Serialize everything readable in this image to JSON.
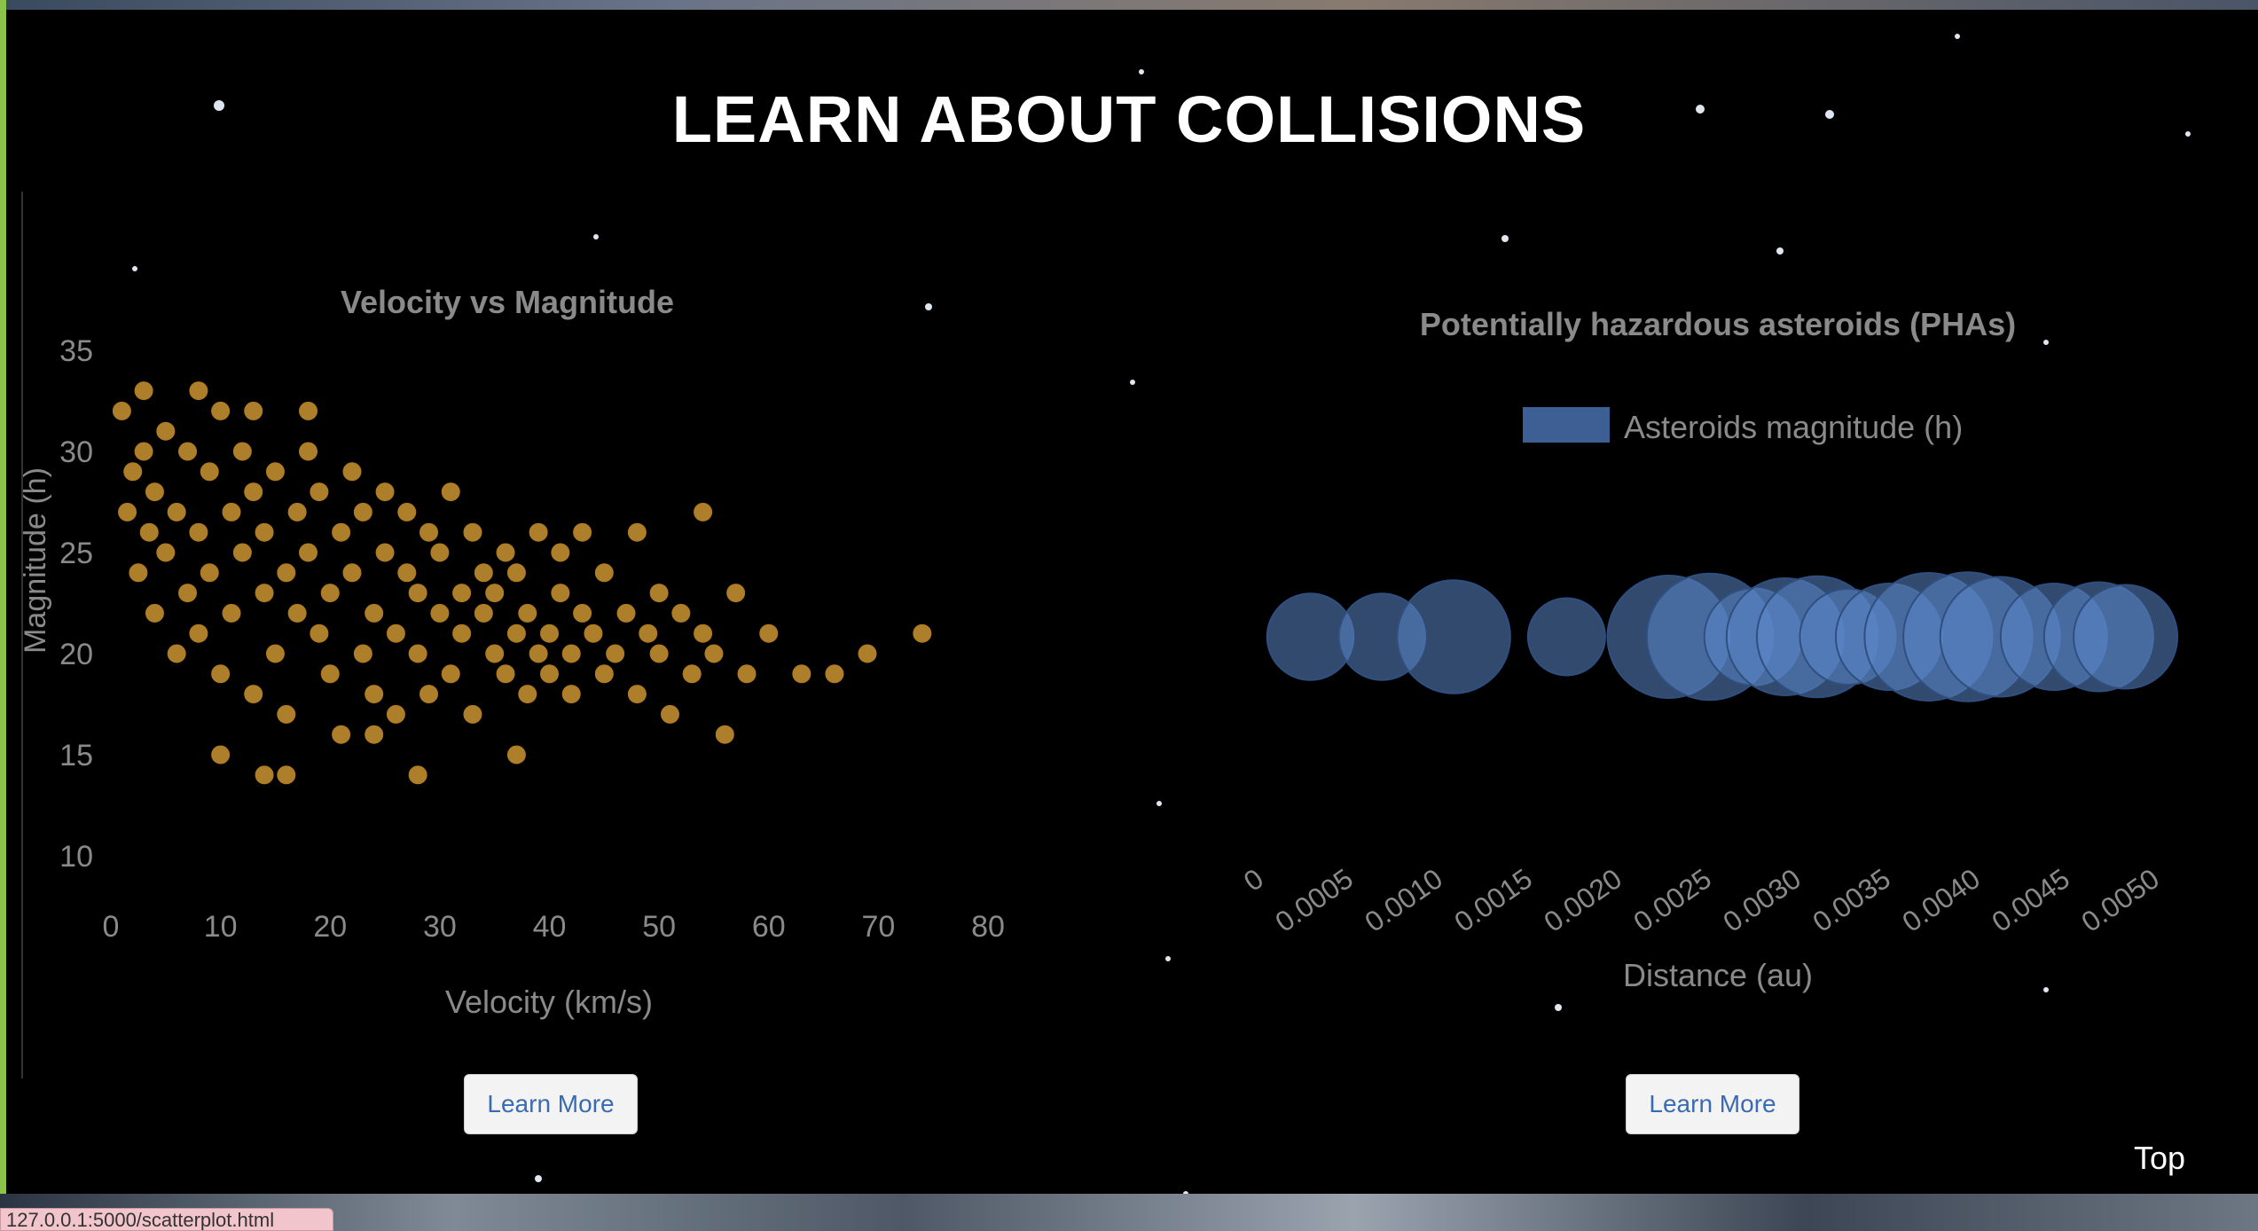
{
  "page": {
    "title": "LEARN ABOUT COLLISIONS"
  },
  "buttons": {
    "learn_more_left": "Learn More",
    "learn_more_right": "Learn More",
    "top": "Top"
  },
  "status": {
    "url": "127.0.0.1:5000/scatterplot.html"
  },
  "colors": {
    "scatter": "#e8a93a",
    "bubble": "#5b86c8",
    "axis_text": "#8a8a8a"
  },
  "chart_data": [
    {
      "type": "scatter",
      "title": "Velocity vs Magnitude",
      "xlabel": "Velocity (km/s)",
      "ylabel": "Magnitude (h)",
      "xlim": [
        0,
        80
      ],
      "ylim": [
        10,
        35
      ],
      "xticks": [
        "0",
        "10",
        "20",
        "30",
        "40",
        "50",
        "60",
        "70",
        "80"
      ],
      "yticks": [
        "10",
        "15",
        "20",
        "25",
        "30",
        "35"
      ],
      "grid": false,
      "points": [
        [
          1,
          32
        ],
        [
          1.5,
          27
        ],
        [
          2,
          29
        ],
        [
          2.5,
          24
        ],
        [
          3,
          30
        ],
        [
          3.5,
          26
        ],
        [
          4,
          22
        ],
        [
          4,
          28
        ],
        [
          5,
          31
        ],
        [
          5,
          25
        ],
        [
          6,
          20
        ],
        [
          6,
          27
        ],
        [
          7,
          23
        ],
        [
          7,
          30
        ],
        [
          8,
          26
        ],
        [
          8,
          21
        ],
        [
          9,
          29
        ],
        [
          9,
          24
        ],
        [
          10,
          32
        ],
        [
          10,
          19
        ],
        [
          11,
          27
        ],
        [
          11,
          22
        ],
        [
          12,
          25
        ],
        [
          12,
          30
        ],
        [
          13,
          18
        ],
        [
          13,
          28
        ],
        [
          14,
          23
        ],
        [
          14,
          26
        ],
        [
          15,
          20
        ],
        [
          15,
          29
        ],
        [
          16,
          24
        ],
        [
          16,
          17
        ],
        [
          17,
          27
        ],
        [
          17,
          22
        ],
        [
          18,
          25
        ],
        [
          18,
          30
        ],
        [
          19,
          21
        ],
        [
          19,
          28
        ],
        [
          20,
          23
        ],
        [
          20,
          19
        ],
        [
          21,
          26
        ],
        [
          21,
          16
        ],
        [
          22,
          24
        ],
        [
          22,
          29
        ],
        [
          23,
          20
        ],
        [
          23,
          27
        ],
        [
          24,
          22
        ],
        [
          24,
          18
        ],
        [
          25,
          25
        ],
        [
          25,
          28
        ],
        [
          26,
          21
        ],
        [
          26,
          17
        ],
        [
          27,
          24
        ],
        [
          27,
          27
        ],
        [
          28,
          20
        ],
        [
          28,
          23
        ],
        [
          29,
          26
        ],
        [
          29,
          18
        ],
        [
          30,
          22
        ],
        [
          30,
          25
        ],
        [
          31,
          19
        ],
        [
          31,
          28
        ],
        [
          32,
          23
        ],
        [
          32,
          21
        ],
        [
          33,
          26
        ],
        [
          33,
          17
        ],
        [
          34,
          22
        ],
        [
          34,
          24
        ],
        [
          35,
          20
        ],
        [
          35,
          23
        ],
        [
          36,
          25
        ],
        [
          36,
          19
        ],
        [
          37,
          21
        ],
        [
          37,
          24
        ],
        [
          38,
          18
        ],
        [
          38,
          22
        ],
        [
          39,
          20
        ],
        [
          39,
          26
        ],
        [
          40,
          21
        ],
        [
          40,
          19
        ],
        [
          41,
          23
        ],
        [
          41,
          25
        ],
        [
          42,
          20
        ],
        [
          42,
          18
        ],
        [
          43,
          22
        ],
        [
          43,
          26
        ],
        [
          44,
          21
        ],
        [
          45,
          19
        ],
        [
          45,
          24
        ],
        [
          46,
          20
        ],
        [
          47,
          22
        ],
        [
          48,
          18
        ],
        [
          48,
          26
        ],
        [
          49,
          21
        ],
        [
          50,
          20
        ],
        [
          50,
          23
        ],
        [
          51,
          17
        ],
        [
          52,
          22
        ],
        [
          53,
          19
        ],
        [
          54,
          21
        ],
        [
          54,
          27
        ],
        [
          55,
          20
        ],
        [
          56,
          16
        ],
        [
          57,
          23
        ],
        [
          58,
          19
        ],
        [
          60,
          21
        ],
        [
          63,
          19
        ],
        [
          66,
          19
        ],
        [
          69,
          20
        ],
        [
          74,
          21
        ],
        [
          3,
          33
        ],
        [
          8,
          33
        ],
        [
          13,
          32
        ],
        [
          18,
          32
        ],
        [
          10,
          15
        ],
        [
          14,
          14
        ],
        [
          16,
          14
        ],
        [
          28,
          14
        ],
        [
          37,
          15
        ],
        [
          24,
          16
        ]
      ]
    },
    {
      "type": "scatter",
      "title": "Potentially hazardous asteroids (PHAs)",
      "legend": [
        "Asteroids magnitude (h)"
      ],
      "legend_position": "top",
      "xlabel": "Distance (au)",
      "xlim": [
        0,
        0.005
      ],
      "xticks": [
        "0",
        "0.0005",
        "0.0010",
        "0.0015",
        "0.0020",
        "0.0025",
        "0.0030",
        "0.0035",
        "0.0040",
        "0.0045",
        "0.0050"
      ],
      "bubbles": [
        {
          "x": 0.00025,
          "size": 21.5
        },
        {
          "x": 0.00065,
          "size": 21.5
        },
        {
          "x": 0.00105,
          "size": 23.5
        },
        {
          "x": 0.00168,
          "size": 20.8
        },
        {
          "x": 0.00225,
          "size": 24.2
        },
        {
          "x": 0.00248,
          "size": 24.5
        },
        {
          "x": 0.00272,
          "size": 22.3
        },
        {
          "x": 0.0029,
          "size": 23.8
        },
        {
          "x": 0.00308,
          "size": 24.1
        },
        {
          "x": 0.00325,
          "size": 22.2
        },
        {
          "x": 0.00348,
          "size": 23.0
        },
        {
          "x": 0.0037,
          "size": 24.6
        },
        {
          "x": 0.00392,
          "size": 24.7
        },
        {
          "x": 0.0041,
          "size": 24.0
        },
        {
          "x": 0.0044,
          "size": 23.0
        },
        {
          "x": 0.00465,
          "size": 23.2
        },
        {
          "x": 0.0048,
          "size": 22.8
        }
      ]
    }
  ]
}
